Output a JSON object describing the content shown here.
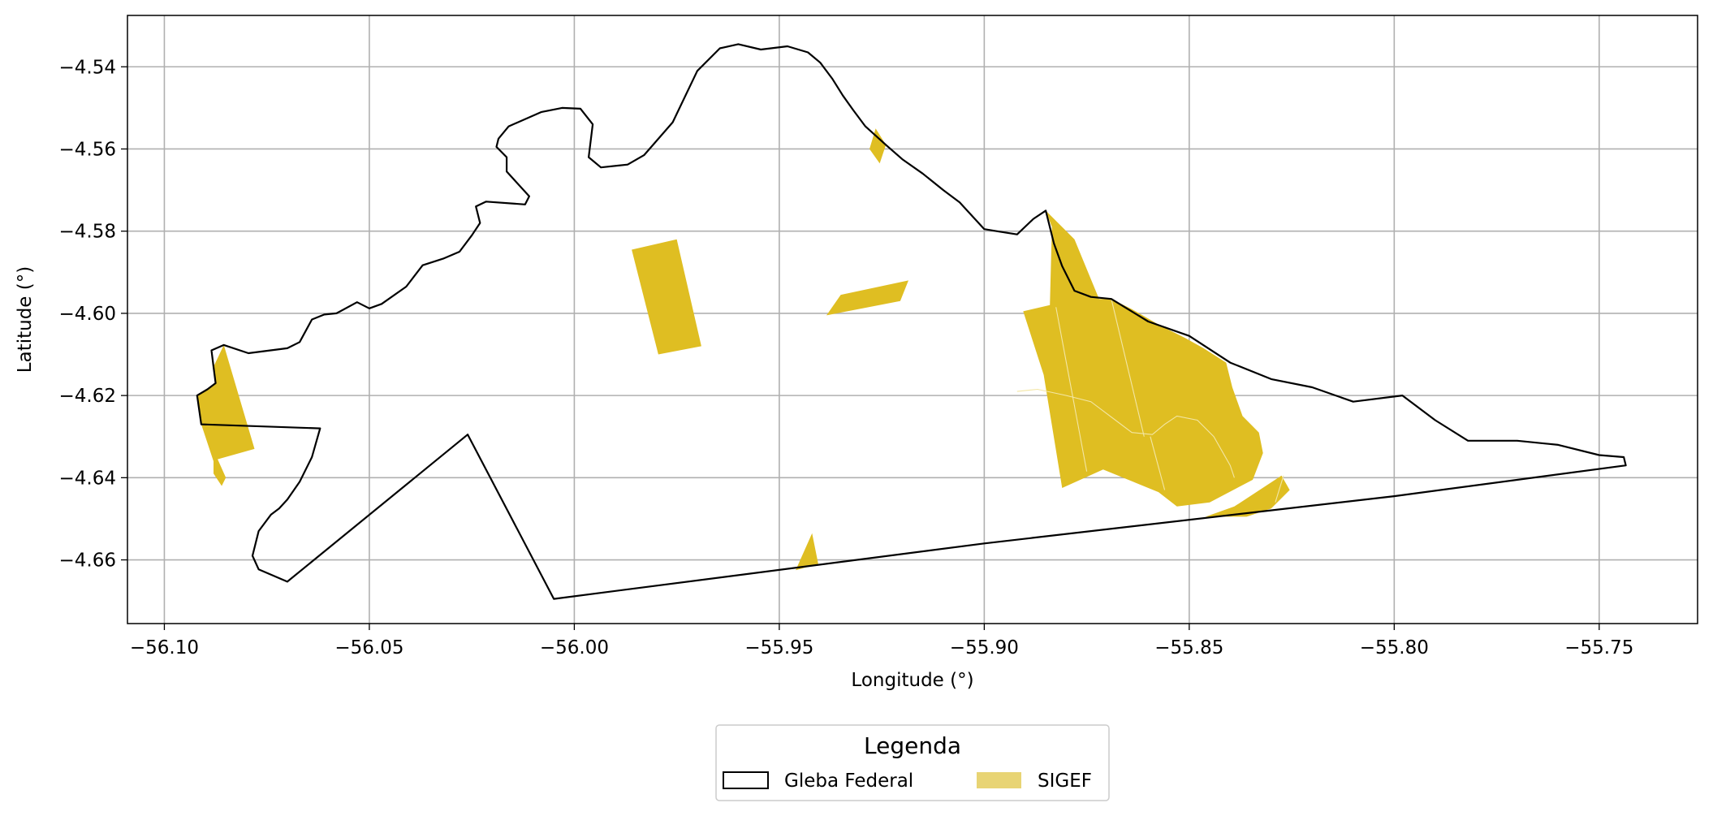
{
  "chart_data": {
    "type": "map",
    "xlabel": "Longitude (°)",
    "ylabel": "Latitude (°)",
    "xlim": [
      -56.109,
      -55.726
    ],
    "ylim": [
      -4.6755,
      -4.5275
    ],
    "grid": true,
    "x_ticks": [
      {
        "value": -56.1,
        "label": "−56.10"
      },
      {
        "value": -56.05,
        "label": "−56.05"
      },
      {
        "value": -56.0,
        "label": "−56.00"
      },
      {
        "value": -55.95,
        "label": "−55.95"
      },
      {
        "value": -55.9,
        "label": "−55.90"
      },
      {
        "value": -55.85,
        "label": "−55.85"
      },
      {
        "value": -55.8,
        "label": "−55.80"
      },
      {
        "value": -55.75,
        "label": "−55.75"
      }
    ],
    "y_ticks": [
      {
        "value": -4.54,
        "label": "−4.54"
      },
      {
        "value": -4.56,
        "label": "−4.56"
      },
      {
        "value": -4.58,
        "label": "−4.58"
      },
      {
        "value": -4.6,
        "label": "−4.60"
      },
      {
        "value": -4.62,
        "label": "−4.62"
      },
      {
        "value": -4.64,
        "label": "−4.64"
      },
      {
        "value": -4.66,
        "label": "−4.66"
      }
    ],
    "legend": {
      "title": "Legenda",
      "placement": "bottom-center",
      "entries": [
        {
          "label": "Gleba Federal",
          "style": "outline",
          "color": "#000000"
        },
        {
          "label": "SIGEF",
          "style": "fill",
          "color": "#e8d474"
        }
      ]
    },
    "layers": [
      {
        "name": "Gleba Federal",
        "kind": "outline",
        "stroke": "#000000",
        "polygons": [
          [
            [
              -56.0855,
              -4.6077
            ],
            [
              -56.0795,
              -4.6097
            ],
            [
              -56.07,
              -4.6085
            ],
            [
              -56.067,
              -4.607
            ],
            [
              -56.064,
              -4.6015
            ],
            [
              -56.061,
              -4.6003
            ],
            [
              -56.058,
              -4.6
            ],
            [
              -56.053,
              -4.5973
            ],
            [
              -56.05,
              -4.5988
            ],
            [
              -56.047,
              -4.5977
            ],
            [
              -56.041,
              -4.5935
            ],
            [
              -56.037,
              -4.5883
            ],
            [
              -56.032,
              -4.5867
            ],
            [
              -56.028,
              -4.585
            ],
            [
              -56.025,
              -4.581
            ],
            [
              -56.023,
              -4.578
            ],
            [
              -56.024,
              -4.574
            ],
            [
              -56.0215,
              -4.5728
            ],
            [
              -56.012,
              -4.5735
            ],
            [
              -56.011,
              -4.5715
            ],
            [
              -56.0165,
              -4.5655
            ],
            [
              -56.0165,
              -4.562
            ],
            [
              -56.019,
              -4.5595
            ],
            [
              -56.0185,
              -4.5575
            ],
            [
              -56.016,
              -4.5545
            ],
            [
              -56.008,
              -4.551
            ],
            [
              -56.003,
              -4.55
            ],
            [
              -55.9985,
              -4.5502
            ],
            [
              -55.9955,
              -4.554
            ],
            [
              -55.9965,
              -4.562
            ],
            [
              -55.9935,
              -4.5645
            ],
            [
              -55.987,
              -4.5638
            ],
            [
              -55.983,
              -4.5615
            ],
            [
              -55.976,
              -4.5535
            ],
            [
              -55.97,
              -4.541
            ],
            [
              -55.9645,
              -4.5355
            ],
            [
              -55.96,
              -4.5345
            ],
            [
              -55.9545,
              -4.5358
            ],
            [
              -55.948,
              -4.535
            ],
            [
              -55.943,
              -4.5365
            ],
            [
              -55.94,
              -4.539
            ],
            [
              -55.937,
              -4.543
            ],
            [
              -55.9345,
              -4.547
            ],
            [
              -55.932,
              -4.5505
            ],
            [
              -55.929,
              -4.5545
            ],
            [
              -55.924,
              -4.559
            ],
            [
              -55.92,
              -4.5625
            ],
            [
              -55.915,
              -4.566
            ],
            [
              -55.91,
              -4.57
            ],
            [
              -55.906,
              -4.573
            ],
            [
              -55.9,
              -4.5795
            ],
            [
              -55.897,
              -4.58
            ],
            [
              -55.892,
              -4.5808
            ],
            [
              -55.888,
              -4.577
            ],
            [
              -55.885,
              -4.575
            ],
            [
              -55.883,
              -4.583
            ],
            [
              -55.881,
              -4.5885
            ],
            [
              -55.878,
              -4.5945
            ],
            [
              -55.874,
              -4.596
            ],
            [
              -55.869,
              -4.5965
            ],
            [
              -55.86,
              -4.602
            ],
            [
              -55.85,
              -4.6055
            ],
            [
              -55.84,
              -4.612
            ],
            [
              -55.83,
              -4.616
            ],
            [
              -55.82,
              -4.618
            ],
            [
              -55.81,
              -4.6215
            ],
            [
              -55.798,
              -4.62
            ],
            [
              -55.79,
              -4.626
            ],
            [
              -55.782,
              -4.631
            ],
            [
              -55.77,
              -4.631
            ],
            [
              -55.76,
              -4.632
            ],
            [
              -55.75,
              -4.6345
            ],
            [
              -55.744,
              -4.635
            ],
            [
              -55.7435,
              -4.637
            ],
            [
              -55.8,
              -4.6445
            ],
            [
              -55.9,
              -4.656
            ],
            [
              -56.005,
              -4.6695
            ],
            [
              -56.026,
              -4.6295
            ],
            [
              -56.07,
              -4.6653
            ],
            [
              -56.077,
              -4.6623
            ],
            [
              -56.0785,
              -4.659
            ],
            [
              -56.077,
              -4.653
            ],
            [
              -56.074,
              -4.649
            ],
            [
              -56.072,
              -4.6475
            ],
            [
              -56.07,
              -4.6453
            ],
            [
              -56.067,
              -4.641
            ],
            [
              -56.064,
              -4.635
            ],
            [
              -56.062,
              -4.628
            ],
            [
              -56.091,
              -4.627
            ],
            [
              -56.092,
              -4.62
            ],
            [
              -56.0895,
              -4.6185
            ],
            [
              -56.0875,
              -4.617
            ],
            [
              -56.088,
              -4.613
            ],
            [
              -56.0885,
              -4.609
            ],
            [
              -56.0855,
              -4.6077
            ]
          ]
        ]
      },
      {
        "name": "SIGEF",
        "kind": "fill",
        "fill": "#dfbe22",
        "polygons": [
          [
            [
              -56.0855,
              -4.6077
            ],
            [
              -56.088,
              -4.613
            ],
            [
              -56.0875,
              -4.617
            ],
            [
              -56.092,
              -4.62
            ],
            [
              -56.091,
              -4.627
            ],
            [
              -56.088,
              -4.636
            ],
            [
              -56.088,
              -4.639
            ],
            [
              -56.086,
              -4.642
            ],
            [
              -56.085,
              -4.64
            ],
            [
              -56.087,
              -4.6355
            ],
            [
              -56.078,
              -4.633
            ]
          ],
          [
            [
              -55.986,
              -4.5845
            ],
            [
              -55.975,
              -4.582
            ],
            [
              -55.969,
              -4.608
            ],
            [
              -55.9795,
              -4.61
            ]
          ],
          [
            [
              -55.9385,
              -4.6005
            ],
            [
              -55.935,
              -4.5955
            ],
            [
              -55.9185,
              -4.592
            ],
            [
              -55.9205,
              -4.597
            ]
          ],
          [
            [
              -55.9265,
              -4.555
            ],
            [
              -55.924,
              -4.559
            ],
            [
              -55.9255,
              -4.5635
            ],
            [
              -55.928,
              -4.56
            ]
          ],
          [
            [
              -55.946,
              -4.6625
            ],
            [
              -55.942,
              -4.6535
            ],
            [
              -55.9405,
              -4.661
            ]
          ],
          [
            [
              -55.8835,
              -4.579
            ],
            [
              -55.885,
              -4.575
            ],
            [
              -55.878,
              -4.582
            ],
            [
              -55.872,
              -4.5965
            ],
            [
              -55.869,
              -4.5965
            ],
            [
              -55.864,
              -4.599
            ],
            [
              -55.857,
              -4.603
            ],
            [
              -55.851,
              -4.606
            ],
            [
              -55.8465,
              -4.6085
            ],
            [
              -55.841,
              -4.612
            ],
            [
              -55.8395,
              -4.618
            ],
            [
              -55.837,
              -4.625
            ],
            [
              -55.833,
              -4.629
            ],
            [
              -55.832,
              -4.634
            ],
            [
              -55.8345,
              -4.6405
            ],
            [
              -55.845,
              -4.646
            ],
            [
              -55.853,
              -4.647
            ],
            [
              -55.8575,
              -4.6435
            ],
            [
              -55.86,
              -4.6425
            ],
            [
              -55.871,
              -4.638
            ],
            [
              -55.881,
              -4.6425
            ],
            [
              -55.8855,
              -4.615
            ],
            [
              -55.8905,
              -4.5995
            ],
            [
              -55.884,
              -4.598
            ]
          ],
          [
            [
              -55.846,
              -4.6495
            ],
            [
              -55.839,
              -4.647
            ],
            [
              -55.8275,
              -4.6395
            ],
            [
              -55.8255,
              -4.643
            ],
            [
              -55.83,
              -4.6475
            ],
            [
              -55.836,
              -4.6495
            ]
          ]
        ],
        "parcel_borders": [
          [
            [
              -55.892,
              -4.619
            ],
            [
              -55.887,
              -4.6185
            ],
            [
              -55.88,
              -4.62
            ],
            [
              -55.874,
              -4.6215
            ],
            [
              -55.868,
              -4.626
            ],
            [
              -55.864,
              -4.629
            ],
            [
              -55.859,
              -4.6295
            ],
            [
              -55.856,
              -4.627
            ],
            [
              -55.853,
              -4.625
            ],
            [
              -55.848,
              -4.626
            ],
            [
              -55.844,
              -4.63
            ],
            [
              -55.84,
              -4.637
            ],
            [
              -55.839,
              -4.64
            ]
          ],
          [
            [
              -55.8825,
              -4.5985
            ],
            [
              -55.875,
              -4.6385
            ]
          ],
          [
            [
              -55.869,
              -4.5965
            ],
            [
              -55.861,
              -4.63
            ]
          ],
          [
            [
              -55.8595,
              -4.63
            ],
            [
              -55.856,
              -4.643
            ]
          ],
          [
            [
              -55.827,
              -4.6395
            ],
            [
              -55.829,
              -4.646
            ]
          ]
        ]
      }
    ]
  }
}
